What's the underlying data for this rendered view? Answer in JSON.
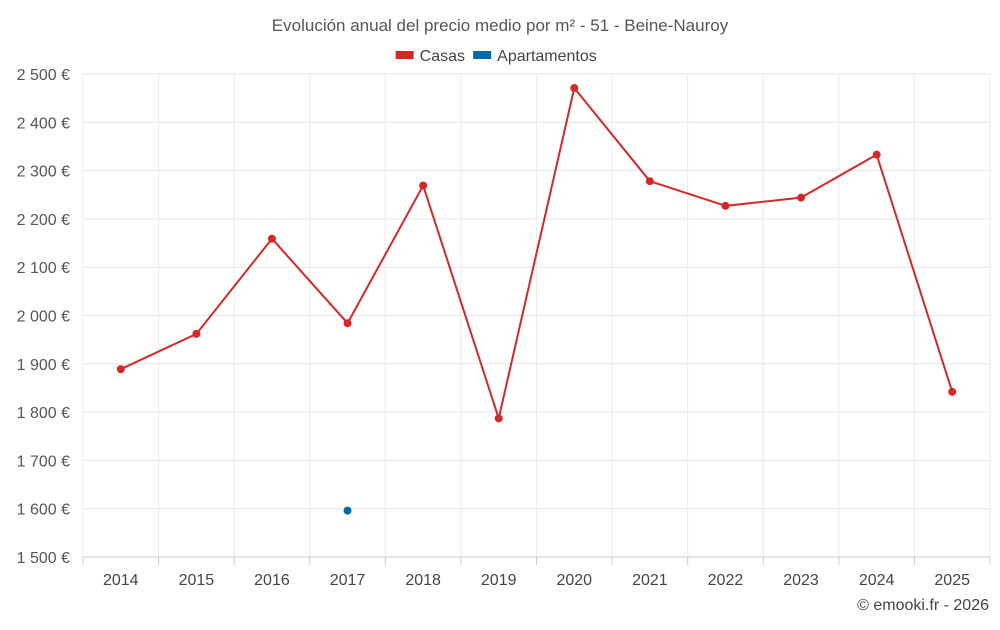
{
  "chart_data": {
    "type": "line",
    "title": "Evolución anual del precio medio por m² - 51 - Beine-Nauroy",
    "credit": "© emooki.fr - 2026",
    "categories": [
      "2014",
      "2015",
      "2016",
      "2017",
      "2018",
      "2019",
      "2020",
      "2021",
      "2022",
      "2023",
      "2024",
      "2025"
    ],
    "ylim": [
      1500,
      2500
    ],
    "yticks": [
      1500,
      1600,
      1700,
      1800,
      1900,
      2000,
      2100,
      2200,
      2300,
      2400,
      2500
    ],
    "ytick_labels": [
      "1 500 €",
      "1 600 €",
      "1 700 €",
      "1 800 €",
      "1 900 €",
      "2 000 €",
      "2 100 €",
      "2 200 €",
      "2 300 €",
      "2 400 €",
      "2 500 €"
    ],
    "grid": true,
    "legend_position": "top-center",
    "series": [
      {
        "name": "Casas",
        "color": "#d62728",
        "values": [
          1889,
          1962,
          2159,
          1984,
          2269,
          1787,
          2471,
          2278,
          2227,
          2244,
          2333,
          1842
        ]
      },
      {
        "name": "Apartamentos",
        "color": "#0868ac",
        "values": [
          null,
          null,
          null,
          1596,
          null,
          null,
          null,
          null,
          null,
          null,
          null,
          null
        ]
      }
    ]
  }
}
